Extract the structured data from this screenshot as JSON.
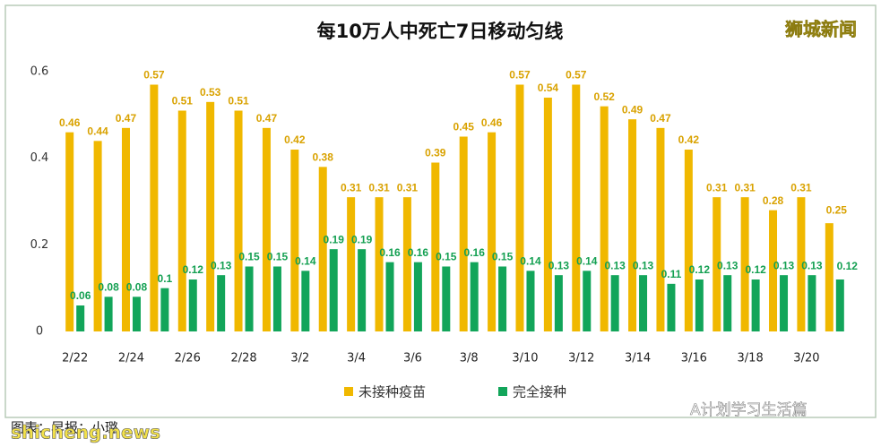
{
  "chart_data": {
    "type": "bar",
    "title": "每10万人中死亡7日移动匀线",
    "categories": [
      "2/22",
      null,
      "2/24",
      null,
      "2/26",
      null,
      "2/28",
      null,
      "3/2",
      null,
      "3/4",
      null,
      "3/6",
      null,
      "3/8",
      null,
      "3/10",
      null,
      "3/12",
      null,
      "3/14",
      null,
      "3/16",
      null,
      "3/18",
      null,
      "3/20",
      null
    ],
    "series": [
      {
        "name": "未接种疫苗",
        "color": "#f0b800",
        "values": [
          0.46,
          0.44,
          0.47,
          0.57,
          0.51,
          0.53,
          0.51,
          0.47,
          0.42,
          0.38,
          0.31,
          0.31,
          0.31,
          0.39,
          0.45,
          0.46,
          0.57,
          0.54,
          0.57,
          0.52,
          0.49,
          0.47,
          0.42,
          0.31,
          0.31,
          0.28,
          0.31,
          0.25
        ]
      },
      {
        "name": "完全接种",
        "color": "#12a55a",
        "values": [
          0.06,
          0.08,
          0.08,
          0.1,
          0.12,
          0.13,
          0.15,
          0.15,
          0.14,
          0.19,
          0.19,
          0.16,
          0.16,
          0.15,
          0.16,
          0.15,
          0.14,
          0.13,
          0.14,
          0.13,
          0.13,
          0.11,
          0.12,
          0.13,
          0.12,
          0.13,
          0.13,
          0.12
        ]
      }
    ],
    "ylim": [
      0,
      0.6
    ],
    "yticks": [
      0,
      0.2,
      0.4,
      0.6
    ],
    "grid": false,
    "legend": "bottom"
  },
  "overlay": {
    "logo": "狮城新闻",
    "credit": "图表：早报：小璐",
    "site": "shicheng.news",
    "wechat": "A计划学习生活篇"
  }
}
